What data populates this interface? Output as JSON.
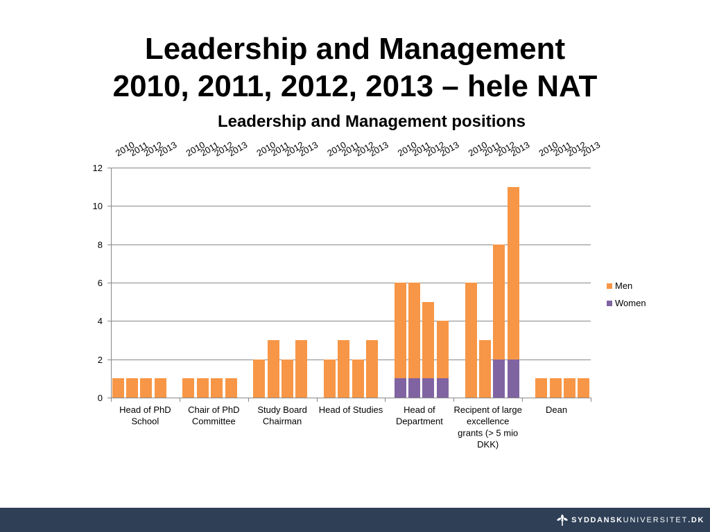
{
  "slide": {
    "title_line1": "Leadership and Management",
    "title_line2": "2010, 2011, 2012, 2013 – hele NAT"
  },
  "footer": {
    "background_color": "#2E3F56",
    "logo_icon": "sdu-logo-icon",
    "logo_text_bold": "SYDDANSK",
    "logo_text_light": "UNIVERSITET",
    "logo_text_suffix": ".DK"
  },
  "chart_data": {
    "type": "bar",
    "stacked": true,
    "title": "Leadership and Management positions",
    "years": [
      "2010",
      "2011",
      "2012",
      "2013"
    ],
    "groups": [
      {
        "label_lines": [
          "Head of PhD",
          "School"
        ]
      },
      {
        "label_lines": [
          "Chair of PhD",
          "Committee"
        ]
      },
      {
        "label_lines": [
          "Study Board",
          "Chairman"
        ]
      },
      {
        "label_lines": [
          "Head of Studies"
        ]
      },
      {
        "label_lines": [
          "Head of",
          "Department"
        ]
      },
      {
        "label_lines": [
          "Recipent of large",
          "excellence",
          "grants (> 5 mio",
          "DKK)"
        ]
      },
      {
        "label_lines": [
          "Dean"
        ]
      }
    ],
    "series": [
      {
        "name": "Women",
        "color": "#8064A2",
        "values": [
          [
            0,
            0,
            0,
            0
          ],
          [
            0,
            0,
            0,
            0
          ],
          [
            0,
            0,
            0,
            0
          ],
          [
            0,
            0,
            0,
            0
          ],
          [
            1,
            1,
            1,
            1
          ],
          [
            0,
            0,
            2,
            2
          ],
          [
            0,
            0,
            0,
            0
          ]
        ]
      },
      {
        "name": "Men",
        "color": "#F79646",
        "values": [
          [
            1,
            1,
            1,
            1
          ],
          [
            1,
            1,
            1,
            1
          ],
          [
            2,
            3,
            2,
            3
          ],
          [
            2,
            3,
            2,
            3
          ],
          [
            5,
            5,
            4,
            3
          ],
          [
            6,
            3,
            6,
            9
          ],
          [
            1,
            1,
            1,
            1
          ]
        ]
      }
    ],
    "ylim": [
      0,
      12
    ],
    "yticks": [
      0,
      2,
      4,
      6,
      8,
      10,
      12
    ],
    "grid": true,
    "legend_position": "right"
  }
}
